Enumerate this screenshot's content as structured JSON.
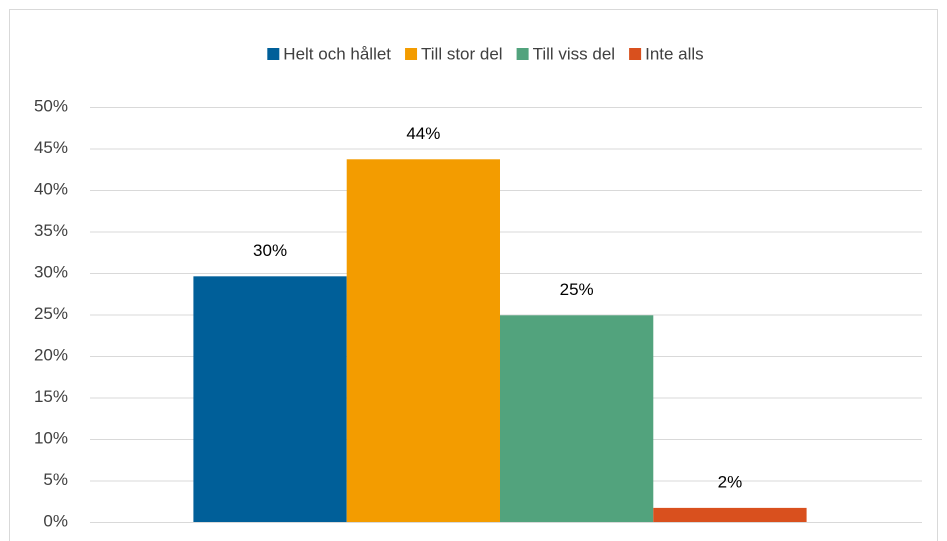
{
  "chart_data": {
    "type": "bar",
    "categories": [
      null
    ],
    "series": [
      {
        "name": "Helt och hållet",
        "color": "#005f99",
        "values": [
          29.6
        ],
        "value_labels": [
          "30%"
        ]
      },
      {
        "name": "Till stor del",
        "color": "#f39c00",
        "values": [
          43.7
        ],
        "value_labels": [
          "44%"
        ]
      },
      {
        "name": "Till viss del",
        "color": "#52a37d",
        "values": [
          24.9
        ],
        "value_labels": [
          "25%"
        ]
      },
      {
        "name": "Inte alls",
        "color": "#d9501e",
        "values": [
          1.7
        ],
        "value_labels": [
          "2%"
        ]
      }
    ],
    "ylim": [
      0,
      50
    ],
    "yticks": [
      {
        "value": 0,
        "label": "0%"
      },
      {
        "value": 5,
        "label": "5%"
      },
      {
        "value": 10,
        "label": "10%"
      },
      {
        "value": 15,
        "label": "15%"
      },
      {
        "value": 20,
        "label": "20%"
      },
      {
        "value": 25,
        "label": "25%"
      },
      {
        "value": 30,
        "label": "30%"
      },
      {
        "value": 35,
        "label": "35%"
      },
      {
        "value": 40,
        "label": "40%"
      },
      {
        "value": 45,
        "label": "45%"
      },
      {
        "value": 50,
        "label": "50%"
      }
    ],
    "grid": true,
    "legend": "top"
  }
}
